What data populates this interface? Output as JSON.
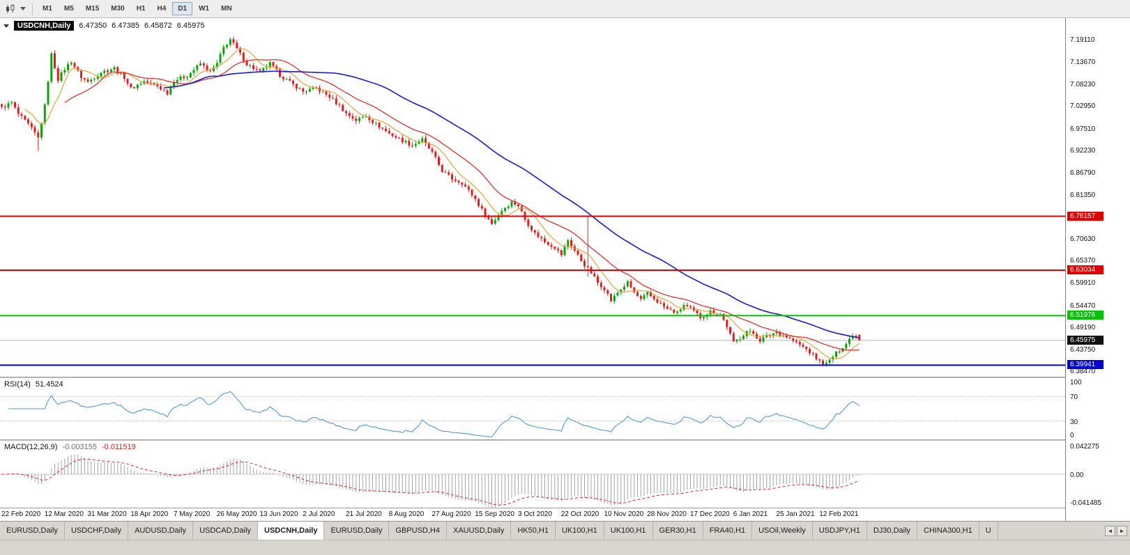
{
  "toolbar": {
    "timeframes": [
      "M1",
      "M5",
      "M15",
      "M30",
      "H1",
      "H4",
      "D1",
      "W1",
      "MN"
    ],
    "selected_timeframe": "D1"
  },
  "chart_header": {
    "symbol": "USDCNH,Daily",
    "open": "6.47350",
    "high": "6.47385",
    "low": "6.45872",
    "close": "6.45975"
  },
  "price_axis": {
    "labels": [
      "7.19110",
      "7.13670",
      "7.08230",
      "7.02950",
      "6.97510",
      "6.92230",
      "6.86790",
      "6.81350",
      "6.70630",
      "6.65370",
      "6.59910",
      "6.54470",
      "6.49190",
      "6.43750",
      "6.38470"
    ],
    "badges": [
      {
        "value": "6.76157",
        "color": "#e00000",
        "role": "resistance-upper"
      },
      {
        "value": "6.63034",
        "color": "#e00000",
        "role": "resistance-lower"
      },
      {
        "value": "6.51976",
        "color": "#00c400",
        "role": "support-upper"
      },
      {
        "value": "6.45975",
        "color": "#111111",
        "role": "current-price"
      },
      {
        "value": "6.39941",
        "color": "#0202c8",
        "role": "support-lower"
      }
    ]
  },
  "rsi_panel": {
    "label": "RSI(14)",
    "value": "51.4524",
    "line_color": "#4f9ad0",
    "level_lines": [
      70,
      30
    ],
    "axis_labels": [
      {
        "text": "100",
        "value": 100
      },
      {
        "text": "70",
        "value": 70
      },
      {
        "text": "30",
        "value": 30
      },
      {
        "text": "0",
        "value": 0
      }
    ]
  },
  "macd_panel": {
    "label": "MACD(12,26,9)",
    "main_value": "-0.003155",
    "signal_value": "-0.011519",
    "histogram_color": "#a4a4a4",
    "signal_color": "#d42a2a",
    "axis_labels": [
      {
        "text": "0.042275",
        "value": 0.042275
      },
      {
        "text": "0.00",
        "value": 0
      },
      {
        "text": "-0.041485",
        "value": -0.041485
      }
    ]
  },
  "tabs": {
    "items": [
      "EURUSD,Daily",
      "USDCHF,Daily",
      "AUDUSD,Daily",
      "USDCAD,Daily",
      "USDCNH,Daily",
      "EURUSD,Daily",
      "GBPUSD,H4",
      "XAUUSD,Daily",
      "HK50,H1",
      "UK100,H1",
      "UK100,H1",
      "GER30,H1",
      "FRA40,H1",
      "USOil,Weekly",
      "USDJPY,H1",
      "DJ30,Daily",
      "CHINA300,H1",
      "U"
    ],
    "active_index": 4,
    "scroll_left_icon": "◄",
    "scroll_right_icon": "►"
  },
  "chart_data": {
    "type": "candlestick",
    "title": "USDCNH,Daily",
    "bars": 260,
    "tick_every": 13,
    "price_range": [
      6.3712,
      7.2436
    ],
    "macd_range": [
      -0.05,
      0.05
    ],
    "rsi_range": [
      0,
      100
    ],
    "up_color": "#0da30d",
    "down_color": "#e01e1e",
    "last_candle": {
      "open": 6.4735,
      "high": 6.47385,
      "low": 6.45872,
      "close": 6.45975
    },
    "close_anchors": [
      [
        0,
        7.025
      ],
      [
        3,
        7.038
      ],
      [
        5,
        7.01
      ],
      [
        8,
        6.985
      ],
      [
        11,
        6.952
      ],
      [
        13,
        7.03
      ],
      [
        15,
        7.155
      ],
      [
        17,
        7.095
      ],
      [
        19,
        7.12
      ],
      [
        21,
        7.138
      ],
      [
        24,
        7.1
      ],
      [
        26,
        7.088
      ],
      [
        30,
        7.112
      ],
      [
        34,
        7.122
      ],
      [
        37,
        7.1
      ],
      [
        39,
        7.072
      ],
      [
        43,
        7.09
      ],
      [
        47,
        7.078
      ],
      [
        50,
        7.062
      ],
      [
        52,
        7.092
      ],
      [
        56,
        7.103
      ],
      [
        60,
        7.133
      ],
      [
        63,
        7.112
      ],
      [
        65,
        7.133
      ],
      [
        67,
        7.172
      ],
      [
        69,
        7.192
      ],
      [
        71,
        7.168
      ],
      [
        74,
        7.132
      ],
      [
        78,
        7.112
      ],
      [
        81,
        7.133
      ],
      [
        84,
        7.105
      ],
      [
        88,
        7.082
      ],
      [
        91,
        7.065
      ],
      [
        95,
        7.073
      ],
      [
        99,
        7.052
      ],
      [
        102,
        7.03
      ],
      [
        104,
        7.012
      ],
      [
        107,
        6.995
      ],
      [
        110,
        7.006
      ],
      [
        113,
        6.986
      ],
      [
        117,
        6.963
      ],
      [
        120,
        6.95
      ],
      [
        124,
        6.934
      ],
      [
        127,
        6.948
      ],
      [
        130,
        6.916
      ],
      [
        133,
        6.872
      ],
      [
        136,
        6.853
      ],
      [
        139,
        6.843
      ],
      [
        141,
        6.824
      ],
      [
        143,
        6.803
      ],
      [
        146,
        6.764
      ],
      [
        148,
        6.744
      ],
      [
        151,
        6.776
      ],
      [
        154,
        6.796
      ],
      [
        156,
        6.788
      ],
      [
        158,
        6.754
      ],
      [
        161,
        6.72
      ],
      [
        164,
        6.7
      ],
      [
        167,
        6.686
      ],
      [
        169,
        6.668
      ],
      [
        171,
        6.704
      ],
      [
        173,
        6.678
      ],
      [
        175,
        6.654
      ],
      [
        178,
        6.624
      ],
      [
        180,
        6.6
      ],
      [
        182,
        6.586
      ],
      [
        184,
        6.556
      ],
      [
        186,
        6.576
      ],
      [
        189,
        6.6
      ],
      [
        191,
        6.576
      ],
      [
        193,
        6.558
      ],
      [
        195,
        6.574
      ],
      [
        198,
        6.554
      ],
      [
        201,
        6.536
      ],
      [
        204,
        6.526
      ],
      [
        206,
        6.546
      ],
      [
        208,
        6.536
      ],
      [
        211,
        6.516
      ],
      [
        214,
        6.53
      ],
      [
        217,
        6.524
      ],
      [
        219,
        6.494
      ],
      [
        221,
        6.454
      ],
      [
        223,
        6.466
      ],
      [
        225,
        6.482
      ],
      [
        227,
        6.476
      ],
      [
        229,
        6.46
      ],
      [
        231,
        6.47
      ],
      [
        234,
        6.48
      ],
      [
        237,
        6.468
      ],
      [
        240,
        6.454
      ],
      [
        243,
        6.438
      ],
      [
        245,
        6.424
      ],
      [
        247,
        6.408
      ],
      [
        249,
        6.402
      ],
      [
        251,
        6.42
      ],
      [
        253,
        6.436
      ],
      [
        255,
        6.452
      ],
      [
        257,
        6.474
      ],
      [
        259,
        6.45975
      ]
    ],
    "spikes": [
      {
        "i": 11,
        "low": 6.9205
      },
      {
        "i": 69,
        "high": 7.1965
      },
      {
        "i": 177,
        "high": 6.762,
        "low": 6.615
      },
      {
        "i": 249,
        "low": 6.3975
      }
    ],
    "levels": [
      {
        "price": 6.45975,
        "color": "#b8b8b8",
        "width": 1,
        "under": true,
        "name": "current-price-line"
      },
      {
        "price": 6.76157,
        "color": "#e00000",
        "width": 2,
        "name": "resistance-line-upper"
      },
      {
        "price": 6.63034,
        "color": "#e00000",
        "width": 2,
        "name": "resistance-line-lower"
      },
      {
        "price": 6.51976,
        "color": "#00c400",
        "width": 2,
        "name": "support-line-upper"
      },
      {
        "price": 6.39941,
        "color": "#0202c8",
        "width": 2,
        "name": "support-line-lower"
      }
    ],
    "moving_averages": [
      {
        "period": 8,
        "color": "#dfa43c",
        "width": 1.2,
        "name": "ma-fast"
      },
      {
        "period": 20,
        "color": "#e02222",
        "width": 1.2,
        "name": "ma-mid"
      },
      {
        "period": 50,
        "color": "#2525c4",
        "width": 1.7,
        "name": "ma-slow"
      }
    ],
    "indicators": [
      {
        "name": "RSI",
        "period": 14,
        "last": 51.4524
      },
      {
        "name": "MACD",
        "fast": 12,
        "slow": 26,
        "signal": 9,
        "last_main": -0.003155,
        "last_signal": -0.011519
      }
    ],
    "x_dates": [
      "22 Feb 2020",
      "12 Mar 2020",
      "31 Mar 2020",
      "18 Apr 2020",
      "7 May 2020",
      "26 May 2020",
      "13 Jun 2020",
      "2 Jul 2020",
      "21 Jul 2020",
      "8 Aug 2020",
      "27 Aug 2020",
      "15 Sep 2020",
      "3 Oct 2020",
      "22 Oct 2020",
      "10 Nov 2020",
      "28 Nov 2020",
      "17 Dec 2020",
      "6 Jan 2021",
      "25 Jan 2021",
      "12 Feb 2021"
    ]
  }
}
